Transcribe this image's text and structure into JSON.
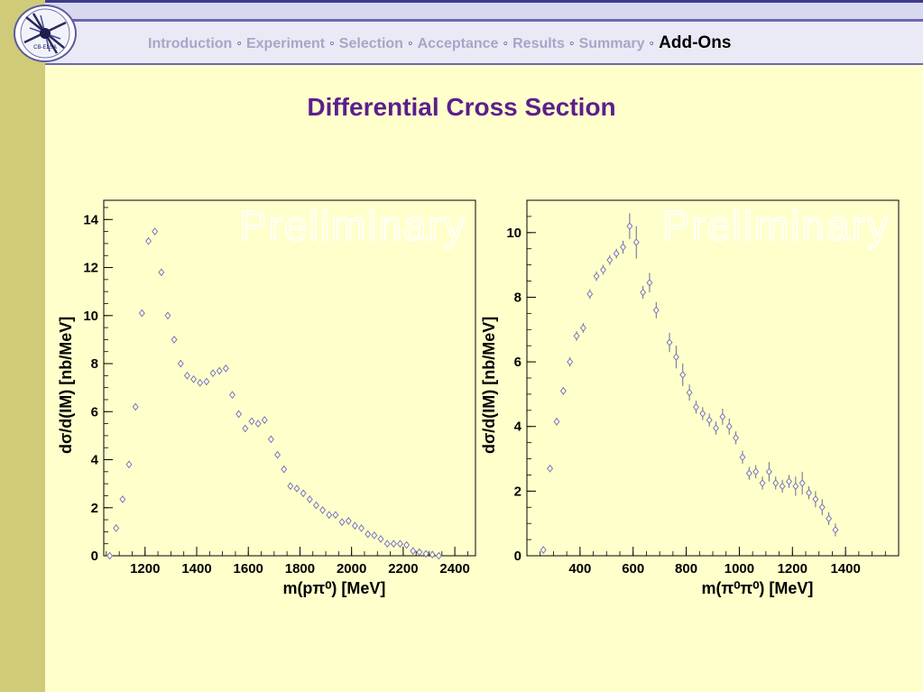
{
  "nav": {
    "items": [
      "Introduction",
      "Experiment",
      "Selection",
      "Acceptance",
      "Results",
      "Summary",
      "Add-Ons"
    ],
    "active_index": 6,
    "separator": "◦"
  },
  "logo": {
    "text": "CB-ELSA"
  },
  "title": "Differential Cross Section",
  "colors": {
    "sidebar": "#cfcb78",
    "background": "#ffffcc",
    "title": "#5b1f8c",
    "nav_inactive": "#a6a6c8",
    "nav_active": "#000000",
    "marker": "#7a7aa0"
  },
  "chart_data": [
    {
      "type": "scatter",
      "watermark": "Preliminary",
      "xlabel": "m(pπ⁰) [MeV]",
      "ylabel": "dσ/d(IM) [nb/MeV]",
      "xlim": [
        1040,
        2480
      ],
      "ylim": [
        0,
        14.8
      ],
      "xticks": [
        1200,
        1400,
        1600,
        1800,
        2000,
        2200,
        2400
      ],
      "yticks": [
        0,
        2,
        4,
        6,
        8,
        10,
        12,
        14
      ],
      "x_minor_step": 50,
      "y_minor_step": 0.5,
      "grid": false,
      "points": [
        [
          1063,
          0.0,
          0.08
        ],
        [
          1088,
          1.15,
          0.08
        ],
        [
          1113,
          2.35,
          0.1
        ],
        [
          1138,
          3.8,
          0.1
        ],
        [
          1163,
          6.2,
          0.12
        ],
        [
          1188,
          10.1,
          0.12
        ],
        [
          1213,
          13.1,
          0.15
        ],
        [
          1238,
          13.5,
          0.15
        ],
        [
          1263,
          11.8,
          0.15
        ],
        [
          1288,
          10.0,
          0.12
        ],
        [
          1313,
          9.0,
          0.12
        ],
        [
          1338,
          8.0,
          0.1
        ],
        [
          1363,
          7.5,
          0.1
        ],
        [
          1388,
          7.35,
          0.1
        ],
        [
          1413,
          7.2,
          0.1
        ],
        [
          1438,
          7.25,
          0.1
        ],
        [
          1463,
          7.6,
          0.1
        ],
        [
          1488,
          7.7,
          0.1
        ],
        [
          1513,
          7.8,
          0.1
        ],
        [
          1538,
          6.7,
          0.1
        ],
        [
          1563,
          5.9,
          0.1
        ],
        [
          1588,
          5.3,
          0.1
        ],
        [
          1613,
          5.6,
          0.1
        ],
        [
          1638,
          5.5,
          0.1
        ],
        [
          1663,
          5.65,
          0.1
        ],
        [
          1688,
          4.85,
          0.1
        ],
        [
          1713,
          4.2,
          0.1
        ],
        [
          1738,
          3.6,
          0.1
        ],
        [
          1763,
          2.9,
          0.08
        ],
        [
          1788,
          2.8,
          0.08
        ],
        [
          1813,
          2.6,
          0.08
        ],
        [
          1838,
          2.35,
          0.08
        ],
        [
          1863,
          2.1,
          0.08
        ],
        [
          1888,
          1.9,
          0.08
        ],
        [
          1913,
          1.7,
          0.08
        ],
        [
          1938,
          1.7,
          0.08
        ],
        [
          1963,
          1.4,
          0.08
        ],
        [
          1988,
          1.45,
          0.08
        ],
        [
          2013,
          1.25,
          0.08
        ],
        [
          2038,
          1.15,
          0.08
        ],
        [
          2063,
          0.9,
          0.08
        ],
        [
          2088,
          0.85,
          0.08
        ],
        [
          2113,
          0.7,
          0.08
        ],
        [
          2138,
          0.5,
          0.08
        ],
        [
          2163,
          0.5,
          0.08
        ],
        [
          2188,
          0.5,
          0.08
        ],
        [
          2213,
          0.45,
          0.08
        ],
        [
          2238,
          0.2,
          0.06
        ],
        [
          2263,
          0.15,
          0.06
        ],
        [
          2288,
          0.08,
          0.06
        ],
        [
          2313,
          0.05,
          0.06
        ],
        [
          2338,
          0.0,
          0.06
        ]
      ]
    },
    {
      "type": "scatter",
      "watermark": "Preliminary",
      "xlabel": "m(π⁰π⁰) [MeV]",
      "ylabel": "dσ/d(IM) [nb/MeV]",
      "xlim": [
        200,
        1600
      ],
      "ylim": [
        0,
        11.0
      ],
      "xticks": [
        400,
        600,
        800,
        1000,
        1200,
        1400
      ],
      "yticks": [
        0,
        2,
        4,
        6,
        8,
        10
      ],
      "x_minor_step": 50,
      "y_minor_step": 0.5,
      "grid": false,
      "points": [
        [
          262,
          0.18,
          0.1
        ],
        [
          287,
          2.7,
          0.1
        ],
        [
          312,
          4.15,
          0.12
        ],
        [
          337,
          5.1,
          0.12
        ],
        [
          362,
          6.0,
          0.15
        ],
        [
          387,
          6.8,
          0.15
        ],
        [
          412,
          7.05,
          0.15
        ],
        [
          437,
          8.1,
          0.15
        ],
        [
          462,
          8.65,
          0.15
        ],
        [
          487,
          8.85,
          0.15
        ],
        [
          512,
          9.15,
          0.15
        ],
        [
          537,
          9.35,
          0.15
        ],
        [
          562,
          9.55,
          0.2
        ],
        [
          587,
          10.2,
          0.4
        ],
        [
          612,
          9.7,
          0.5
        ],
        [
          637,
          8.15,
          0.2
        ],
        [
          662,
          8.45,
          0.3
        ],
        [
          687,
          7.6,
          0.25
        ],
        [
          737,
          6.6,
          0.3
        ],
        [
          762,
          6.15,
          0.35
        ],
        [
          787,
          5.6,
          0.35
        ],
        [
          812,
          5.05,
          0.25
        ],
        [
          837,
          4.6,
          0.2
        ],
        [
          862,
          4.4,
          0.2
        ],
        [
          887,
          4.2,
          0.2
        ],
        [
          912,
          3.95,
          0.2
        ],
        [
          937,
          4.3,
          0.25
        ],
        [
          962,
          4.0,
          0.25
        ],
        [
          987,
          3.65,
          0.2
        ],
        [
          1012,
          3.05,
          0.2
        ],
        [
          1037,
          2.55,
          0.2
        ],
        [
          1062,
          2.6,
          0.2
        ],
        [
          1087,
          2.25,
          0.2
        ],
        [
          1112,
          2.6,
          0.3
        ],
        [
          1137,
          2.25,
          0.2
        ],
        [
          1162,
          2.15,
          0.2
        ],
        [
          1187,
          2.3,
          0.2
        ],
        [
          1212,
          2.15,
          0.3
        ],
        [
          1237,
          2.25,
          0.35
        ],
        [
          1262,
          1.95,
          0.2
        ],
        [
          1287,
          1.75,
          0.25
        ],
        [
          1312,
          1.5,
          0.25
        ],
        [
          1337,
          1.15,
          0.2
        ],
        [
          1362,
          0.8,
          0.2
        ]
      ]
    }
  ]
}
